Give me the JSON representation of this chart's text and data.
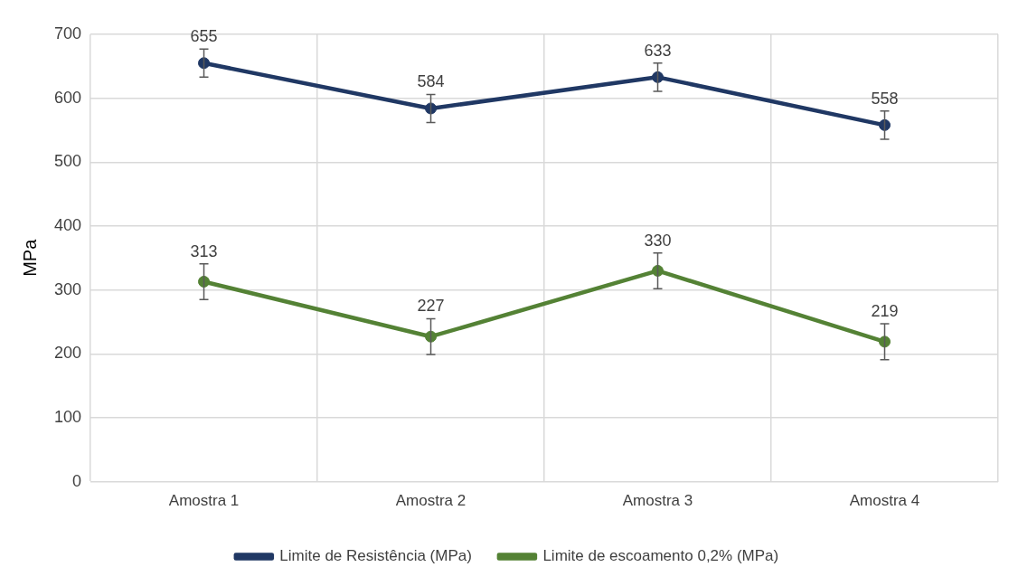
{
  "chart_data": {
    "type": "line",
    "ylabel": "MPa",
    "categories": [
      "Amostra 1",
      "Amostra 2",
      "Amostra 3",
      "Amostra 4"
    ],
    "series": [
      {
        "name": "Limite de Resistência (MPa)",
        "color": "#203864",
        "values": [
          655,
          584,
          633,
          558
        ],
        "errors": [
          22,
          22,
          22,
          22
        ]
      },
      {
        "name": "Limite de escoamento 0,2% (MPa)",
        "color": "#548235",
        "values": [
          313,
          227,
          330,
          219
        ],
        "errors": [
          28,
          28,
          28,
          28
        ]
      }
    ],
    "ylim": [
      0,
      700
    ],
    "yticks": [
      0,
      100,
      200,
      300,
      400,
      500,
      600,
      700
    ],
    "grid": true,
    "legend": "bottom",
    "marker": "circle",
    "line_style": "solid",
    "data_labels": true
  }
}
